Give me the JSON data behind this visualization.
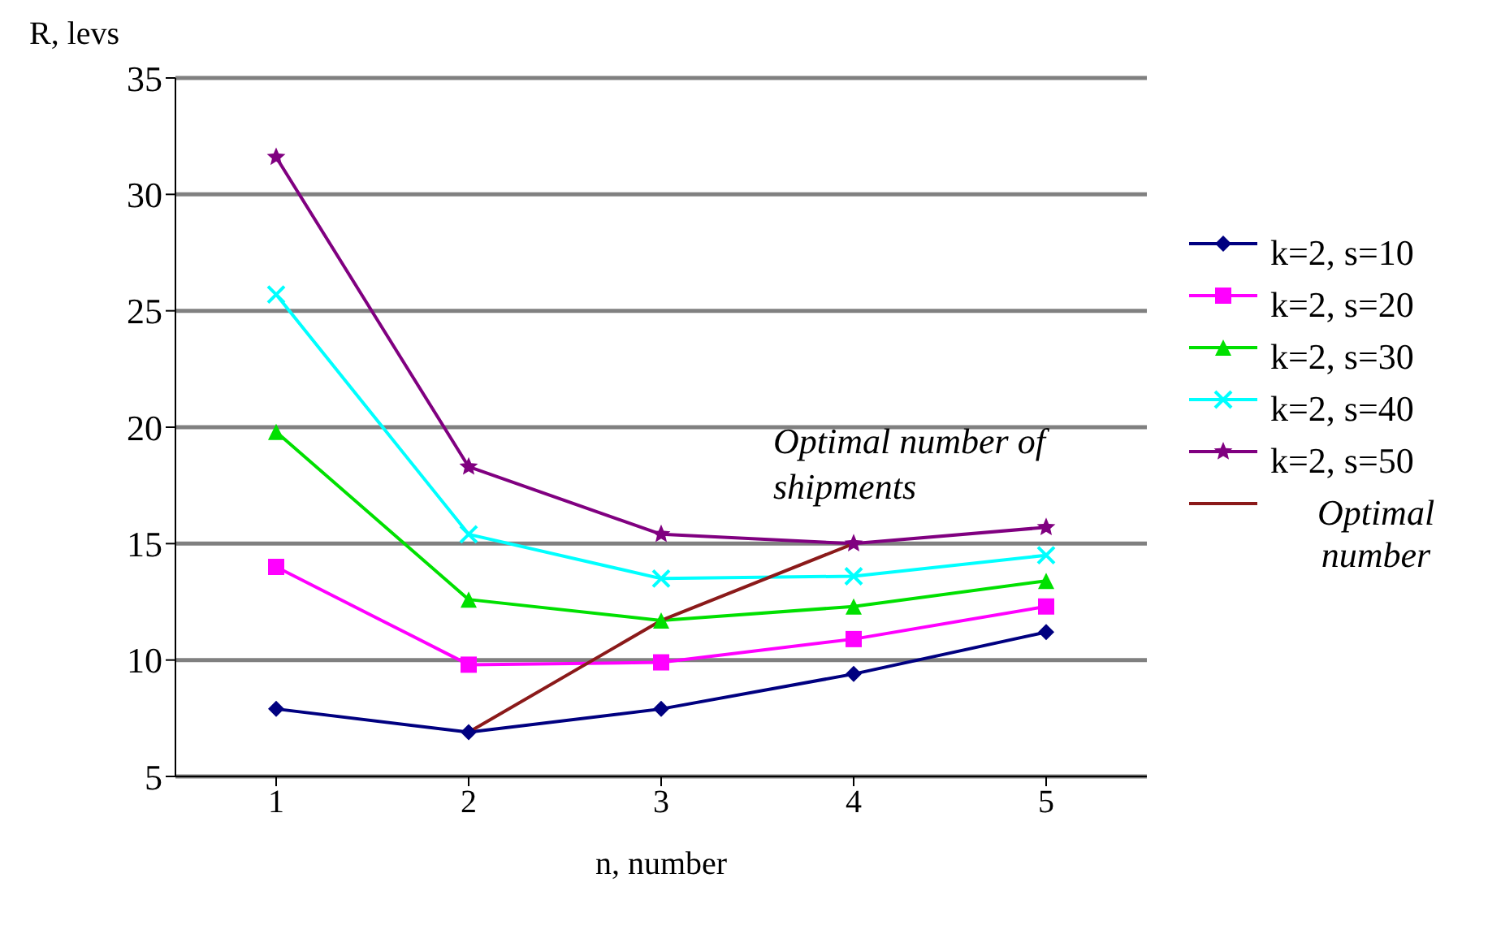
{
  "chart_data": {
    "type": "line",
    "ylabel": "R, levs",
    "xlabel": "n, number",
    "categories": [
      "1",
      "2",
      "3",
      "4",
      "5"
    ],
    "ylim": [
      5,
      35
    ],
    "yticks": [
      5,
      10,
      15,
      20,
      25,
      30,
      35
    ],
    "grid": "y",
    "legend": "right",
    "annotations": [
      "Optimal number of shipments"
    ],
    "series": [
      {
        "name": "k=2, s=10",
        "color": "#000080",
        "marker": "diamond",
        "values": [
          7.9,
          6.9,
          7.9,
          9.4,
          11.2
        ]
      },
      {
        "name": "k=2, s=20",
        "color": "#ff00ff",
        "marker": "square",
        "values": [
          14.0,
          9.8,
          9.9,
          10.9,
          12.3
        ]
      },
      {
        "name": "k=2, s=30",
        "color": "#00e000",
        "marker": "triangle",
        "values": [
          19.8,
          12.6,
          11.7,
          12.3,
          13.4
        ]
      },
      {
        "name": "k=2, s=40",
        "color": "#00ffff",
        "marker": "cross",
        "values": [
          25.7,
          15.4,
          13.5,
          13.6,
          14.5
        ]
      },
      {
        "name": "k=2, s=50",
        "color": "#800080",
        "marker": "star",
        "values": [
          31.6,
          18.3,
          15.4,
          15.0,
          15.7
        ]
      },
      {
        "name": "Optimal number",
        "color": "#8b1a1a",
        "marker": "none",
        "values": [
          null,
          6.9,
          11.7,
          15.0,
          null
        ]
      }
    ]
  }
}
